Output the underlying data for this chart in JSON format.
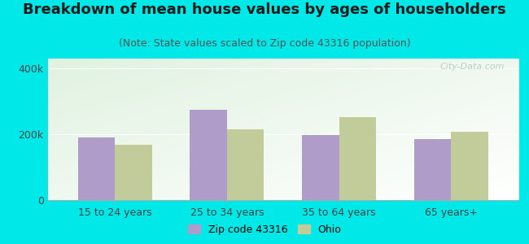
{
  "title": "Breakdown of mean house values by ages of householders",
  "subtitle": "(Note: State values scaled to Zip code 43316 population)",
  "categories": [
    "15 to 24 years",
    "25 to 34 years",
    "35 to 64 years",
    "65 years+"
  ],
  "zip_values": [
    190000,
    275000,
    197000,
    185000
  ],
  "ohio_values": [
    168000,
    215000,
    252000,
    208000
  ],
  "zip_color": "#b09cc8",
  "ohio_color": "#c2cc9a",
  "background_color": "#00e8e8",
  "ylim": [
    0,
    430000
  ],
  "ytick_vals": [
    0,
    200000,
    400000
  ],
  "ytick_labels": [
    "0",
    "200k",
    "400k"
  ],
  "watermark": "City-Data.com",
  "legend_zip_label": "Zip code 43316",
  "legend_ohio_label": "Ohio",
  "title_fontsize": 13,
  "subtitle_fontsize": 9,
  "tick_fontsize": 9,
  "legend_fontsize": 9
}
